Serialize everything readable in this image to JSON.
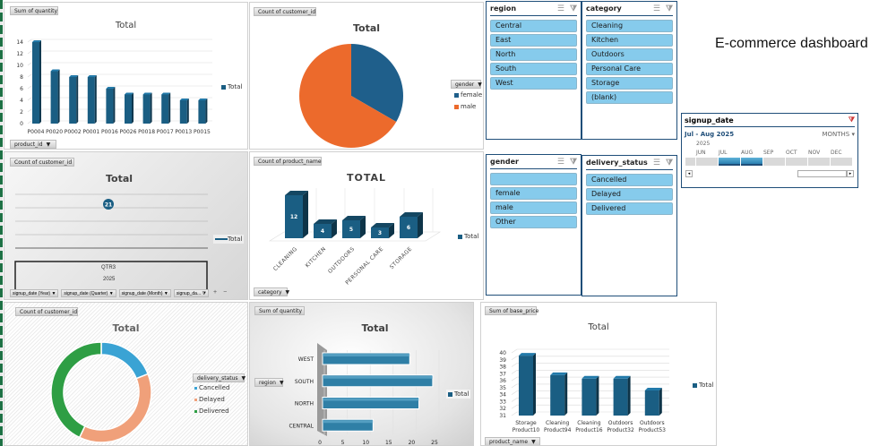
{
  "dashboard": {
    "title": "E-commerce dashboard"
  },
  "colors": {
    "bar_blue": "#1a5e83",
    "female": "#1f5f8b",
    "male": "#ec6a2c",
    "cancelled": "#3aa3d4",
    "delayed": "#f0a07a",
    "delivered": "#2e9e44",
    "slicer_item": "#86cbec",
    "slicer_border": "#1f4e79"
  },
  "panels": {
    "qty_by_product": {
      "field_button": "Sum of quantity",
      "axis_filter": "product_id",
      "legend": "Total"
    },
    "gender_pie": {
      "field_button": "Count of customer_id",
      "legend_title": "gender",
      "legend_items": [
        "female",
        "male"
      ]
    },
    "signup_line": {
      "field_button": "Count of customer_id",
      "legend": "Total",
      "point_label": "21",
      "axis_quarter": "QTR3",
      "axis_year": "2025",
      "filters": [
        "signup_date (Year)",
        "signup_date (Quarter)",
        "signup_date (Month)",
        "signup_da..."
      ],
      "plus": "+",
      "minus": "−"
    },
    "category_bar": {
      "field_button": "Count of product_name",
      "axis_filter": "category",
      "legend": "Total"
    },
    "delivery_donut": {
      "field_button": "Count of customer_id",
      "legend_title": "delivery_status",
      "legend_items": [
        "Cancelled",
        "Delayed",
        "Delivered"
      ]
    },
    "region_bar": {
      "field_button": "Sum of quantity",
      "axis_filter": "region",
      "legend": "Total"
    },
    "price_bar": {
      "field_button": "Sum of base_price",
      "axis_filter": "product_name",
      "legend": "Total"
    }
  },
  "slicers": {
    "region": {
      "title": "region",
      "items": [
        "Central",
        "East",
        "North",
        "South",
        "West"
      ]
    },
    "category": {
      "title": "category",
      "items": [
        "Cleaning",
        "Kitchen",
        "Outdoors",
        "Personal Care",
        "Storage",
        "(blank)"
      ]
    },
    "gender": {
      "title": "gender",
      "items": [
        "",
        "female",
        "male",
        "Other"
      ]
    },
    "delivery_status": {
      "title": "delivery_status",
      "items": [
        "Cancelled",
        "Delayed",
        "Delivered"
      ]
    }
  },
  "timeline": {
    "title": "signup_date",
    "range_label": "Jul - Aug 2025",
    "level": "MONTHS",
    "year": "2025",
    "months": [
      "JUN",
      "JUL",
      "AUG",
      "SEP",
      "OCT",
      "NOV",
      "DEC"
    ],
    "selected_months": [
      "JUL",
      "AUG"
    ]
  },
  "chart_data": [
    {
      "id": "qty_by_product",
      "type": "bar",
      "title": "Total",
      "categories": [
        "P0004",
        "P0020",
        "P0002",
        "P0001",
        "P0016",
        "P0026",
        "P0018",
        "P0017",
        "P0013",
        "P0015"
      ],
      "values": [
        14,
        9,
        8,
        8,
        6,
        5,
        5,
        5,
        4,
        4
      ],
      "yticks": [
        "0",
        "2",
        "4",
        "6",
        "8",
        "10",
        "12",
        "14"
      ],
      "ylim": [
        0,
        14
      ],
      "legend": "Total",
      "legend_position": "right"
    },
    {
      "id": "gender_pie",
      "type": "pie",
      "title": "Total",
      "categories": [
        "female",
        "male"
      ],
      "values": [
        7,
        14
      ],
      "legend_position": "right"
    },
    {
      "id": "signup_line",
      "type": "line",
      "title": "Total",
      "categories": [
        "QTR3 2025"
      ],
      "values": [
        21
      ],
      "legend_position": "right"
    },
    {
      "id": "category_bar",
      "type": "bar",
      "title": "TOTAL",
      "categories": [
        "CLEANING",
        "KITCHEN",
        "OUTDOORS",
        "PERSONAL CARE",
        "STORAGE"
      ],
      "values": [
        12,
        4,
        5,
        3,
        6
      ],
      "data_labels": [
        "12",
        "4",
        "5",
        "3",
        "6"
      ],
      "legend_position": "right"
    },
    {
      "id": "delivery_donut",
      "type": "pie",
      "title": "Total",
      "categories": [
        "Cancelled",
        "Delayed",
        "Delivered"
      ],
      "values": [
        4,
        8,
        9
      ],
      "legend_position": "right"
    },
    {
      "id": "region_bar",
      "type": "bar",
      "orientation": "horizontal",
      "title": "Total",
      "categories": [
        "WEST",
        "SOUTH",
        "NORTH",
        "CENTRAL"
      ],
      "values": [
        19,
        24,
        21,
        11
      ],
      "xticks": [
        "0",
        "5",
        "10",
        "15",
        "20",
        "25"
      ],
      "xlim": [
        0,
        25
      ],
      "legend_position": "right"
    },
    {
      "id": "price_bar",
      "type": "bar",
      "title": "Total",
      "categories": [
        "Storage Product10",
        "Cleaning Product94",
        "Cleaning Product16",
        "Outdoors Product32",
        "Outdoors Product53"
      ],
      "values": [
        39.6,
        36.8,
        36.3,
        36.3,
        34.6
      ],
      "yticks": [
        "31",
        "32",
        "33",
        "34",
        "35",
        "36",
        "37",
        "38",
        "39",
        "40"
      ],
      "ylim": [
        31,
        40
      ],
      "legend_position": "right"
    }
  ]
}
